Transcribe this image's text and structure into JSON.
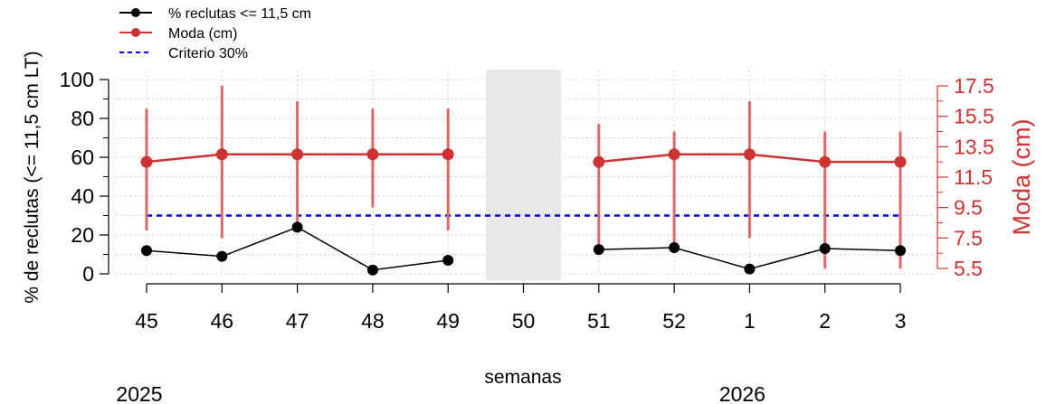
{
  "chart_data": {
    "type": "line",
    "x_label": "semanas",
    "y_label": "% de reclutas (<= 11,5 cm LT)",
    "y2_label": "Moda (cm)",
    "x_ticks": [
      "45",
      "46",
      "47",
      "48",
      "49",
      "50",
      "51",
      "52",
      "1",
      "2",
      "3"
    ],
    "year_labels": [
      {
        "text": "2025",
        "at_week": "45"
      },
      {
        "text": "2026",
        "at_week": "1"
      }
    ],
    "y_ticks": [
      "0",
      "20",
      "40",
      "60",
      "80",
      "100"
    ],
    "y_range": [
      0,
      100
    ],
    "y2_ticks": [
      "5.5",
      "7.5",
      "9.5",
      "11.5",
      "13.5",
      "15.5",
      "17.5"
    ],
    "y2_range": [
      5.5,
      17.5
    ],
    "grid": true,
    "shaded_week": "50",
    "legend": {
      "position": "top-left",
      "entries": [
        {
          "label": "% reclutas <= 11,5 cm",
          "color": "#000000",
          "style": "line-point"
        },
        {
          "label": "Moda (cm)",
          "color": "#cd3333",
          "style": "line-point"
        },
        {
          "label": "Criterio 30%",
          "color": "#0000ff",
          "style": "dashed"
        }
      ]
    },
    "series": [
      {
        "name": "% reclutas <= 11,5 cm",
        "axis": "left",
        "color": "#000000",
        "values": [
          12,
          9,
          24,
          2,
          7,
          null,
          12.5,
          13.5,
          2.5,
          13,
          12
        ]
      },
      {
        "name": "Moda (cm)",
        "axis": "right",
        "color": "#cd3333",
        "bar_color": "#e06666",
        "values": [
          12.5,
          13,
          13,
          13,
          13,
          null,
          12.5,
          13,
          13,
          12.5,
          12.5
        ],
        "range_low": [
          8,
          7.5,
          8.5,
          9.5,
          8,
          null,
          6.5,
          6.5,
          7.5,
          5.5,
          5.5
        ],
        "range_high": [
          16,
          17.5,
          16.5,
          16,
          16,
          null,
          15,
          14.5,
          16.5,
          14.5,
          14.5
        ]
      },
      {
        "name": "Criterio 30%",
        "axis": "left",
        "color": "#0000ff",
        "values": [
          30,
          30,
          30,
          30,
          30,
          30,
          30,
          30,
          30,
          30,
          30
        ]
      }
    ]
  }
}
